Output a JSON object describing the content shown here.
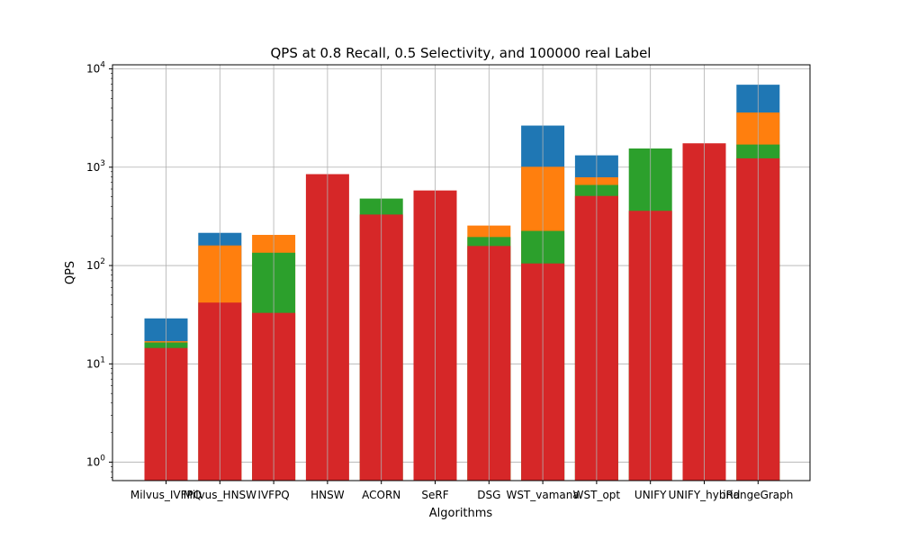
{
  "chart_data": {
    "type": "bar",
    "title": "QPS at 0.8 Recall, 0.5 Selectivity, and 100000 real Label",
    "xlabel": "Algorithms",
    "ylabel": "QPS",
    "yscale": "log",
    "ylim": [
      0.65,
      11000
    ],
    "grid": true,
    "categories": [
      "Milvus_IVFPQ",
      "Milvus_HNSW",
      "IVFPQ",
      "HNSW",
      "ACORN",
      "SeRF",
      "DSG",
      "WST_vamana",
      "WST_opt",
      "UNIFY",
      "UNIFY_hybrid",
      "iRangeGraph"
    ],
    "y_ticks": [
      {
        "value": 1,
        "base": "10",
        "exp": "0"
      },
      {
        "value": 10,
        "base": "10",
        "exp": "1"
      },
      {
        "value": 100,
        "base": "10",
        "exp": "2"
      },
      {
        "value": 1000,
        "base": "10",
        "exp": "3"
      },
      {
        "value": 10000,
        "base": "10",
        "exp": "4"
      }
    ],
    "series": [
      {
        "color": "#1f77b4",
        "values": [
          29,
          215,
          null,
          null,
          null,
          null,
          null,
          2650,
          1320,
          null,
          null,
          6900
        ]
      },
      {
        "color": "#ff7f0e",
        "values": [
          17,
          160,
          205,
          null,
          null,
          null,
          255,
          1010,
          790,
          null,
          null,
          3600
        ]
      },
      {
        "color": "#2ca02c",
        "values": [
          16.5,
          null,
          135,
          null,
          480,
          null,
          195,
          225,
          660,
          1550,
          null,
          1700
        ]
      },
      {
        "color": "#d62728",
        "values": [
          14.5,
          42,
          33,
          850,
          330,
          580,
          158,
          105,
          510,
          360,
          1750,
          1230
        ]
      }
    ]
  }
}
